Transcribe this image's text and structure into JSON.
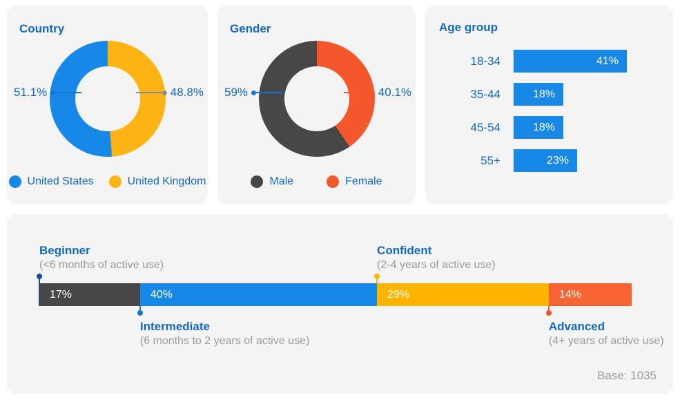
{
  "colors": {
    "page_background": "#FFFFFF",
    "card_background": "#F4F4F4",
    "heading_blue": "#1268C3",
    "chart_blue": "#1787E8",
    "gold": "#FCB414",
    "dark_gray": "#474747",
    "orange": "#F4572B",
    "muted_gray_text": "#9B9B9B",
    "axis_line": "#E3E3E3"
  },
  "chart_data": [
    {
      "type": "donut",
      "title": "Country",
      "legend_position": "bottom",
      "series": [
        {
          "name": "United States",
          "value": 51.1,
          "label": "51.1%",
          "color": "#1787E8",
          "leader_color": "#1476D2",
          "callout_side": "left"
        },
        {
          "name": "United Kingdom",
          "value": 48.8,
          "label": "48.8%",
          "color": "#FCB414",
          "leader_color": "#8C8C8C",
          "callout_side": "right"
        }
      ]
    },
    {
      "type": "donut",
      "title": "Gender",
      "legend_position": "bottom",
      "series": [
        {
          "name": "Male",
          "value": 59,
          "label": "59%",
          "color": "#474747",
          "leader_color": "#1476D2",
          "callout_side": "left"
        },
        {
          "name": "Female",
          "value": 40.1,
          "label": "40.1%",
          "color": "#F4572B",
          "leader_color": "#F4572B",
          "callout_side": "right"
        }
      ]
    },
    {
      "type": "bar",
      "title": "Age group",
      "orientation": "horizontal",
      "categories": [
        "18-34",
        "35-44",
        "45-54",
        "55+"
      ],
      "values": [
        41,
        18,
        18,
        23
      ],
      "value_labels": [
        "41%",
        "18%",
        "18%",
        "23%"
      ],
      "bar_color": "#1787E8",
      "xlim": [
        0,
        42
      ],
      "grid": false
    },
    {
      "type": "stacked_bar",
      "title": "",
      "orientation": "horizontal",
      "total": 100,
      "segments": [
        {
          "name": "Beginner",
          "description": "(<6 months of active use)",
          "value": 17,
          "label": "17%",
          "color": "#474747",
          "dot_color": "#164A9A",
          "annotation": "above"
        },
        {
          "name": "Intermediate",
          "description": "(6 months to 2 years of active use)",
          "value": 40,
          "label": "40%",
          "color": "#1787E8",
          "dot_color": "#1476D2",
          "annotation": "below"
        },
        {
          "name": "Confident",
          "description": "(2-4 years of active use)",
          "value": 29,
          "label": "29%",
          "color": "#FFB400",
          "dot_color": "#FFB400",
          "annotation": "above"
        },
        {
          "name": "Advanced",
          "description": "(4+ years of active use)",
          "value": 14,
          "label": "14%",
          "color": "#F96232",
          "dot_color": "#F4502B",
          "annotation": "below"
        }
      ],
      "base_note": "Base: 1035"
    }
  ]
}
